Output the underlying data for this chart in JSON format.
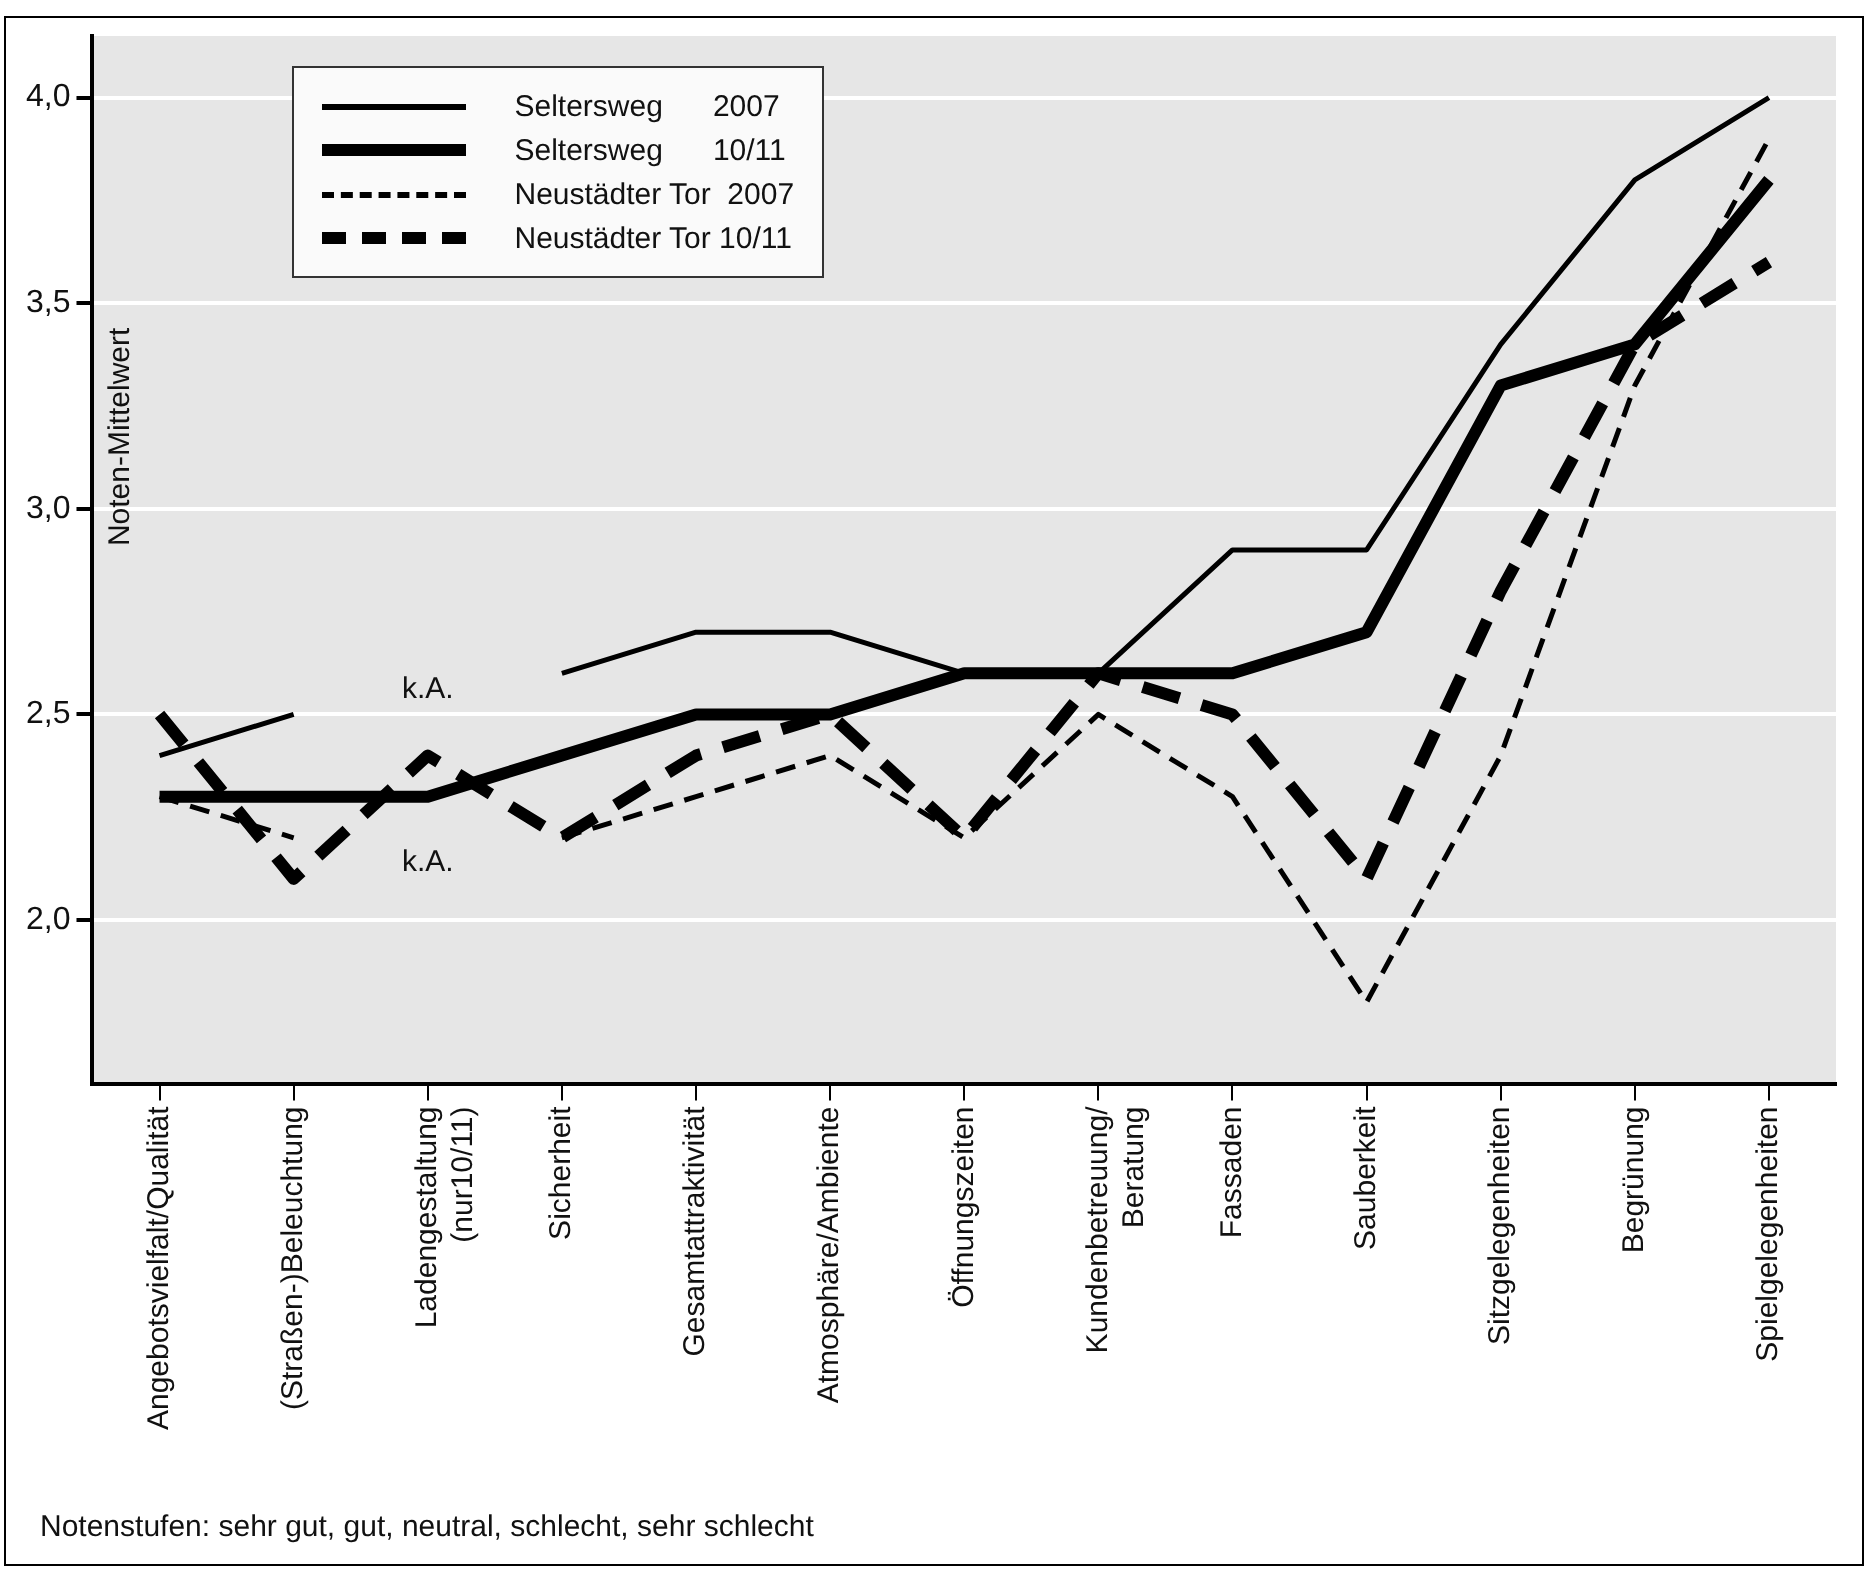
{
  "chart_data": {
    "type": "line",
    "ylabel": "Noten-Mittelwert",
    "categories": [
      "Angebotsvielfalt/Qualität",
      "(Straßen-)Beleuchtung",
      "Ladengestaltung\n(nur10/11)",
      "Sicherheit",
      "Gesamtattraktivität",
      "Atmosphäre/Ambiente",
      "Öffnungszeiten",
      "Kundenbetreuung/\nBeratung",
      "Fassaden",
      "Sauberkeit",
      "Sitzgelegenheiten",
      "Begrünung",
      "Spielgelegenheiten"
    ],
    "series": [
      {
        "name": "Seltersweg      2007",
        "color": "#000000",
        "line_style": "solid",
        "values": [
          2.4,
          2.5,
          null,
          2.6,
          2.7,
          2.7,
          2.6,
          2.6,
          2.9,
          2.9,
          3.4,
          3.8,
          4.0
        ]
      },
      {
        "name": "Seltersweg      10/11",
        "color": "#000000",
        "line_style": "solid",
        "values": [
          2.3,
          2.3,
          2.3,
          2.4,
          2.5,
          2.5,
          2.6,
          2.6,
          2.6,
          2.7,
          3.3,
          3.4,
          3.8
        ]
      },
      {
        "name": "Neustädter Tor  2007",
        "color": "#000000",
        "line_style": "dashed",
        "values": [
          2.3,
          2.2,
          null,
          2.2,
          2.3,
          2.4,
          2.2,
          2.5,
          2.3,
          1.8,
          2.4,
          3.3,
          3.9
        ]
      },
      {
        "name": "Neustädter Tor 10/11",
        "color": "#000000",
        "line_style": "dashed",
        "values": [
          2.5,
          2.1,
          2.4,
          2.2,
          2.4,
          2.5,
          2.2,
          2.6,
          2.5,
          2.1,
          2.8,
          3.4,
          3.6
        ]
      }
    ],
    "ylim": [
      1.6,
      4.15
    ],
    "yticks": [
      {
        "value": 2.0,
        "label": "2,0"
      },
      {
        "value": 2.5,
        "label": "2,5"
      },
      {
        "value": 3.0,
        "label": "3,0"
      },
      {
        "value": 3.5,
        "label": "3,5"
      },
      {
        "value": 4.0,
        "label": "4,0"
      }
    ],
    "grid": "y",
    "legend": "top left",
    "marker": "none",
    "annotations": [
      "k.A.",
      "k.A.",
      "Notenstufen: sehr gut, gut, neutral, schlecht, sehr schlecht"
    ]
  }
}
